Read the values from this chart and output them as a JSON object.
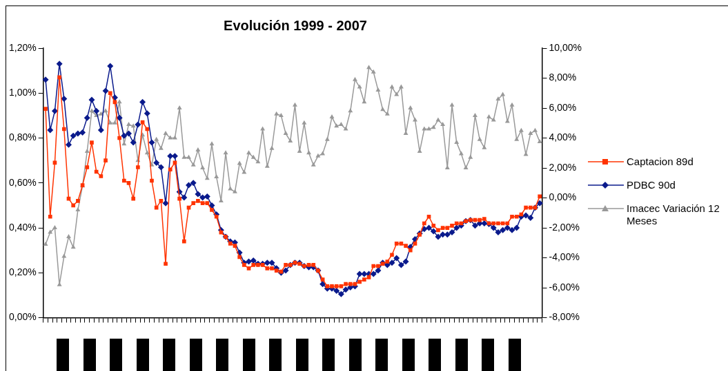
{
  "chart_data": {
    "type": "line",
    "title": "Evolución 1999 - 2007",
    "categories": [
      null,
      null,
      null,
      null,
      null,
      null,
      null,
      null,
      null,
      null,
      null,
      null,
      null,
      null,
      null,
      null,
      null,
      null,
      null,
      null,
      null,
      null,
      null,
      null,
      null,
      null,
      null,
      null,
      null,
      null,
      null,
      null,
      null,
      null,
      null,
      null,
      null,
      null,
      null,
      null,
      null,
      null,
      null,
      null,
      null,
      null,
      null,
      null,
      null,
      null,
      null,
      null,
      null,
      null,
      null,
      null,
      null,
      null,
      null,
      null,
      null,
      null,
      null,
      null,
      null,
      null,
      null,
      null,
      null,
      null,
      null,
      null,
      null,
      null,
      null,
      null,
      null,
      null,
      null,
      null,
      null,
      null,
      null,
      null,
      null,
      null,
      null,
      null,
      null,
      null,
      null,
      null,
      null,
      null,
      null,
      null,
      null,
      null,
      null,
      null,
      null,
      null,
      null,
      null,
      null,
      null,
      null,
      null
    ],
    "series": [
      {
        "name": "Captacion 89d",
        "color": "#ff3300",
        "marker": "square",
        "values": [
          0.93,
          0.45,
          0.69,
          1.07,
          0.84,
          0.53,
          0.5,
          0.52,
          0.59,
          0.67,
          0.78,
          0.65,
          0.63,
          0.7,
          1.0,
          0.96,
          0.8,
          0.61,
          0.6,
          0.53,
          0.67,
          0.87,
          0.84,
          0.61,
          0.49,
          0.52,
          0.24,
          0.66,
          0.69,
          0.53,
          0.34,
          0.49,
          0.51,
          0.52,
          0.51,
          0.51,
          0.48,
          0.45,
          0.38,
          0.36,
          0.33,
          0.32,
          0.27,
          0.235,
          0.22,
          0.235,
          0.235,
          0.235,
          0.22,
          0.22,
          0.21,
          0.205,
          0.235,
          0.235,
          0.245,
          0.24,
          0.23,
          0.235,
          0.235,
          0.21,
          0.17,
          0.14,
          0.14,
          0.14,
          0.14,
          0.15,
          0.15,
          0.15,
          0.16,
          0.17,
          0.18,
          0.23,
          0.23,
          0.24,
          0.25,
          0.28,
          0.33,
          0.33,
          0.32,
          0.3,
          0.33,
          0.37,
          0.42,
          0.45,
          0.41,
          0.39,
          0.4,
          0.4,
          0.41,
          0.42,
          0.42,
          0.43,
          0.435,
          0.435,
          0.435,
          0.44,
          0.42,
          0.42,
          0.42,
          0.42,
          0.42,
          0.45,
          0.45,
          0.46,
          0.49,
          0.49,
          0.49,
          0.54
        ]
      },
      {
        "name": "PDBC 90d",
        "color": "#0a1a8c",
        "marker": "diamond",
        "values": [
          1.06,
          0.835,
          0.92,
          1.13,
          0.975,
          0.77,
          0.81,
          0.82,
          0.825,
          0.89,
          0.97,
          0.92,
          0.835,
          1.01,
          1.12,
          0.98,
          0.89,
          0.81,
          0.82,
          0.78,
          0.86,
          0.96,
          0.91,
          0.78,
          0.69,
          0.67,
          0.51,
          0.72,
          0.72,
          0.56,
          0.535,
          0.59,
          0.6,
          0.55,
          0.535,
          0.54,
          0.5,
          0.46,
          0.39,
          0.36,
          0.34,
          0.335,
          0.29,
          0.245,
          0.25,
          0.255,
          0.24,
          0.24,
          0.245,
          0.245,
          0.22,
          0.2,
          0.21,
          0.235,
          0.245,
          0.245,
          0.23,
          0.225,
          0.225,
          0.21,
          0.15,
          0.13,
          0.13,
          0.12,
          0.105,
          0.125,
          0.135,
          0.14,
          0.195,
          0.195,
          0.195,
          0.195,
          0.21,
          0.245,
          0.235,
          0.245,
          0.265,
          0.235,
          0.25,
          0.315,
          0.35,
          0.375,
          0.395,
          0.4,
          0.385,
          0.36,
          0.37,
          0.37,
          0.38,
          0.4,
          0.41,
          0.43,
          0.435,
          0.41,
          0.42,
          0.42,
          0.417,
          0.4,
          0.38,
          0.39,
          0.4,
          0.39,
          0.4,
          0.45,
          0.455,
          0.445,
          0.49,
          0.51
        ]
      },
      {
        "name": "Imacec Variación 12 Meses",
        "color": "#999999",
        "marker": "triangle",
        "axis": "y2",
        "values": [
          -3.1,
          -2.3,
          -2.0,
          -5.8,
          -3.9,
          -2.6,
          -3.3,
          -0.8,
          0.8,
          3.1,
          5.8,
          5.5,
          5.6,
          5.8,
          5.0,
          5.0,
          6.4,
          3.6,
          4.9,
          4.8,
          2.5,
          4.2,
          3.0,
          2.2,
          3.9,
          3.3,
          4.3,
          4.0,
          4.0,
          6.0,
          2.7,
          2.7,
          2.2,
          3.2,
          2.0,
          1.3,
          3.6,
          1.4,
          -0.2,
          3.0,
          0.6,
          0.4,
          2.3,
          1.7,
          3.0,
          2.7,
          2.4,
          4.6,
          2.1,
          3.3,
          5.6,
          5.5,
          4.3,
          3.8,
          6.2,
          3.1,
          5.0,
          3.0,
          2.2,
          2.8,
          2.95,
          3.9,
          5.4,
          4.8,
          4.9,
          4.6,
          5.8,
          7.9,
          7.4,
          6.4,
          8.7,
          8.4,
          7.2,
          5.9,
          5.6,
          7.4,
          6.9,
          7.4,
          4.3,
          6.0,
          5.2,
          3.1,
          4.6,
          4.6,
          4.7,
          5.2,
          4.9,
          2.0,
          6.2,
          3.7,
          2.95,
          2.0,
          2.7,
          5.5,
          3.9,
          3.35,
          5.4,
          5.2,
          6.6,
          6.9,
          5.1,
          6.2,
          3.9,
          4.5,
          2.9,
          4.3,
          4.5,
          3.75
        ]
      }
    ],
    "ylim": [
      0,
      1.2
    ],
    "yticks": [
      {
        "value": 0,
        "label": "0,00%"
      },
      {
        "value": 0.2,
        "label": "0,20%"
      },
      {
        "value": 0.4,
        "label": "0,40%"
      },
      {
        "value": 0.6,
        "label": "0,60%"
      },
      {
        "value": 0.8,
        "label": "0,80%"
      },
      {
        "value": 1.0,
        "label": "1,00%"
      },
      {
        "value": 1.2,
        "label": "1,20%"
      }
    ],
    "y2lim": [
      -8,
      10
    ],
    "y2ticks": [
      {
        "value": -8,
        "label": "-8,00%"
      },
      {
        "value": -6,
        "label": "-6,00%"
      },
      {
        "value": -4,
        "label": "-4,00%"
      },
      {
        "value": -2,
        "label": "-2,00%"
      },
      {
        "value": 0,
        "label": "0,00%"
      },
      {
        "value": 2,
        "label": "2,00%"
      },
      {
        "value": 4,
        "label": "4,00%"
      },
      {
        "value": 6,
        "label": "6,00%"
      },
      {
        "value": 8,
        "label": "8,00%"
      },
      {
        "value": 10,
        "label": "10,00%"
      }
    ],
    "grid": false,
    "legend": "right",
    "line_style": "solid"
  }
}
